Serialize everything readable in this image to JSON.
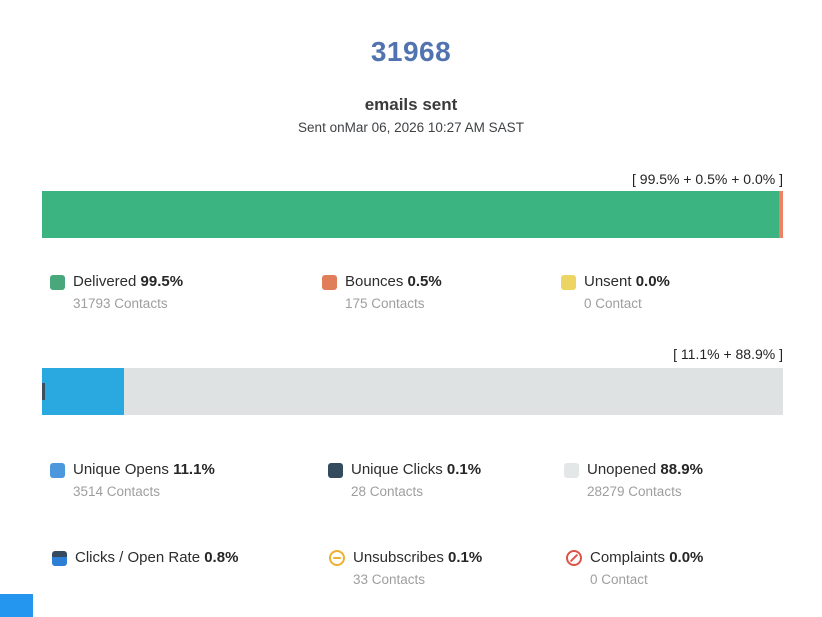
{
  "header": {
    "total": "31968",
    "subtitle": "emails sent",
    "sent_on": "Sent onMar 06, 2026 10:27 AM SAST"
  },
  "theme": {
    "title_color": "#5173af",
    "text_dark": "#2d2d2d",
    "muted_gray": "#9e9e9e",
    "cutoff_element_color": "#2496ef"
  },
  "chart_data": [
    {
      "type": "bar",
      "orientation": "horizontal_stacked",
      "title": "31968 emails sent",
      "subtitle": "Sent onMar 06, 2026 10:27 AM SAST",
      "annotation": "[ 99.5% + 0.5% + 0.0% ]",
      "xlim": [
        0,
        100
      ],
      "grid": false,
      "legend_position": "below",
      "series": [
        {
          "name": "Delivered",
          "value": 99.5,
          "contacts": 31793,
          "color": "#3cb482"
        },
        {
          "name": "Bounces",
          "value": 0.5,
          "contacts": 175,
          "color": "#ef8164"
        },
        {
          "name": "Unsent",
          "value": 0.0,
          "contacts": 0,
          "color": "#ecd563"
        }
      ]
    },
    {
      "type": "bar",
      "orientation": "horizontal_stacked",
      "annotation": "[ 11.1% + 88.9% ]",
      "xlim": [
        0,
        100
      ],
      "grid": false,
      "legend_position": "below",
      "series": [
        {
          "name": "Unique Opens",
          "value": 11.1,
          "contacts": 3514,
          "color": "#29a9e0"
        },
        {
          "name": "Unique Clicks",
          "value": 0.1,
          "contacts": 28,
          "color": "#3d4f5d"
        },
        {
          "name": "Unopened",
          "value": 88.9,
          "contacts": 28279,
          "color": "#dfe2e2"
        }
      ]
    }
  ],
  "delivery": {
    "bracket": "[ 99.5% + 0.5% + 0.0% ]",
    "legend": [
      {
        "label": "Delivered",
        "pct": "99.5%",
        "contacts": "31793 Contacts",
        "color": "#48a87b"
      },
      {
        "label": "Bounces",
        "pct": "0.5%",
        "contacts": "175 Contacts",
        "color": "#e07d5a"
      },
      {
        "label": "Unsent",
        "pct": "0.0%",
        "contacts": "0 Contact",
        "color": "#ecd563"
      }
    ]
  },
  "engagement": {
    "bracket": "[ 11.1% + 88.9% ]",
    "legend": [
      {
        "label": "Unique Opens",
        "pct": "11.1%",
        "contacts": "3514 Contacts",
        "color": "#4d97dd"
      },
      {
        "label": "Unique Clicks",
        "pct": "0.1%",
        "contacts": "28 Contacts",
        "color": "#344a5e"
      },
      {
        "label": "Unopened",
        "pct": "88.9%",
        "contacts": "28279 Contacts",
        "color": "#e4e7e8"
      }
    ]
  },
  "extra": {
    "legend": [
      {
        "label": "Clicks / Open Rate",
        "pct": "0.8%",
        "icon": "clicks-open-rate-icon",
        "color_top": "#344a5e",
        "color_bottom": "#2d7fd6"
      },
      {
        "label": "Unsubscribes",
        "pct": "0.1%",
        "contacts": "33 Contacts",
        "icon": "minus-circle-icon",
        "color": "#efaf2f"
      },
      {
        "label": "Complaints",
        "pct": "0.0%",
        "contacts": "0 Contact",
        "icon": "no-entry-icon",
        "color": "#dd5347"
      }
    ]
  }
}
